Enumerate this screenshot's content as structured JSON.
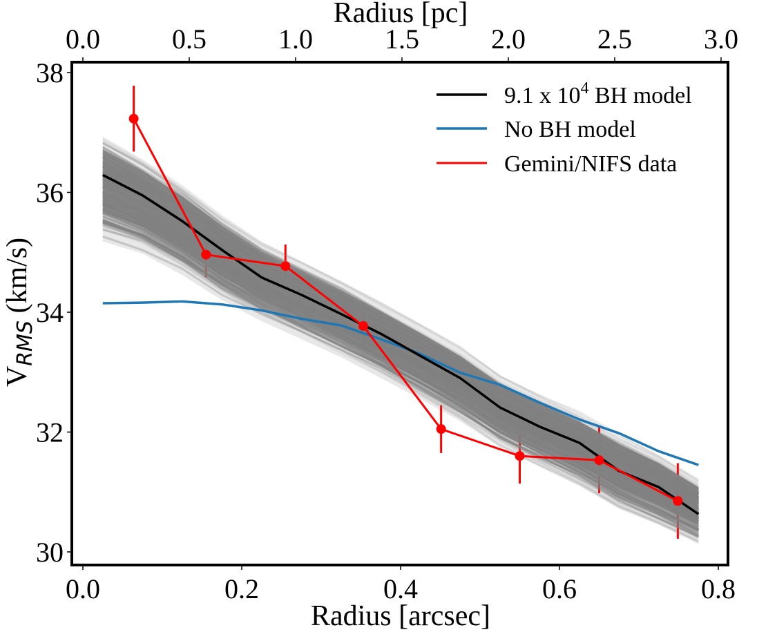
{
  "chart_data": {
    "type": "line",
    "title": "",
    "xlabel": "Radius [arcsec]",
    "xlabel_top": "Radius [pc]",
    "ylabel_main": "V",
    "ylabel_sub": "RMS",
    "ylabel_unit": " (km/s)",
    "xlim": [
      -0.014,
      0.812
    ],
    "ylim": [
      29.85,
      38.17
    ],
    "xticks": [
      0.0,
      0.2,
      0.4,
      0.6,
      0.8
    ],
    "xtick_labels": [
      "0.0",
      "0.2",
      "0.4",
      "0.6",
      "0.8"
    ],
    "xticks_top_pc": [
      0.0,
      0.5,
      1.0,
      1.5,
      2.0,
      2.5,
      3.0
    ],
    "xtick_top_labels": [
      "0.0",
      "0.5",
      "1.0",
      "1.5",
      "2.0",
      "2.5",
      "3.0"
    ],
    "pc_per_arcsec": 3.734,
    "yticks": [
      30,
      32,
      34,
      36,
      38
    ],
    "ytick_labels": [
      "30",
      "32",
      "34",
      "36",
      "38"
    ],
    "grid": false,
    "legend": {
      "placement": "top-right",
      "entries": [
        {
          "label_pre": "9.1 x 10",
          "label_sup": "4",
          "label_post": " BH model",
          "color": "#000000"
        },
        {
          "label_pre": "No BH model",
          "label_sup": "",
          "label_post": "",
          "color": "#1f77b4"
        },
        {
          "label_pre": "Gemini/NIFS data",
          "label_sup": "",
          "label_post": "",
          "color": "#ff0000"
        }
      ]
    },
    "x": [
      0.025,
      0.075,
      0.125,
      0.175,
      0.225,
      0.275,
      0.325,
      0.375,
      0.425,
      0.475,
      0.525,
      0.575,
      0.625,
      0.675,
      0.725,
      0.775
    ],
    "series": [
      {
        "name": "9.1 x 10^4 BH model",
        "color": "#000000",
        "values": [
          36.29,
          35.95,
          35.52,
          35.04,
          34.58,
          34.29,
          33.97,
          33.64,
          33.27,
          32.9,
          32.41,
          32.09,
          31.82,
          31.35,
          31.08,
          30.63
        ]
      },
      {
        "name": "No BH model",
        "color": "#1f77b4",
        "values": [
          34.15,
          34.16,
          34.18,
          34.13,
          34.03,
          33.89,
          33.78,
          33.55,
          33.3,
          32.99,
          32.79,
          32.49,
          32.21,
          31.98,
          31.68,
          31.45
        ]
      }
    ],
    "model_ensemble_band": {
      "color": "#808080",
      "upper": [
        36.93,
        36.55,
        36.12,
        35.62,
        35.18,
        34.85,
        34.52,
        34.17,
        33.8,
        33.42,
        32.95,
        32.62,
        32.33,
        31.95,
        31.62,
        31.2
      ],
      "lower": [
        35.18,
        34.98,
        34.62,
        34.2,
        33.85,
        33.55,
        33.25,
        32.9,
        32.55,
        32.18,
        31.75,
        31.42,
        31.1,
        30.72,
        30.45,
        30.15
      ]
    },
    "data": {
      "name": "Gemini/NIFS data",
      "color": "#ff0000",
      "points": [
        {
          "x": 0.064,
          "y": 37.23,
          "err": 0.55
        },
        {
          "x": 0.155,
          "y": 34.96,
          "err": 0.38
        },
        {
          "x": 0.255,
          "y": 34.77,
          "err": 0.36
        },
        {
          "x": 0.353,
          "y": 33.77,
          "err": 0.38
        },
        {
          "x": 0.451,
          "y": 32.05,
          "err": 0.4
        },
        {
          "x": 0.55,
          "y": 31.6,
          "err": 0.46
        },
        {
          "x": 0.65,
          "y": 31.53,
          "err": 0.55
        },
        {
          "x": 0.749,
          "y": 30.85,
          "err": 0.63
        }
      ]
    }
  }
}
